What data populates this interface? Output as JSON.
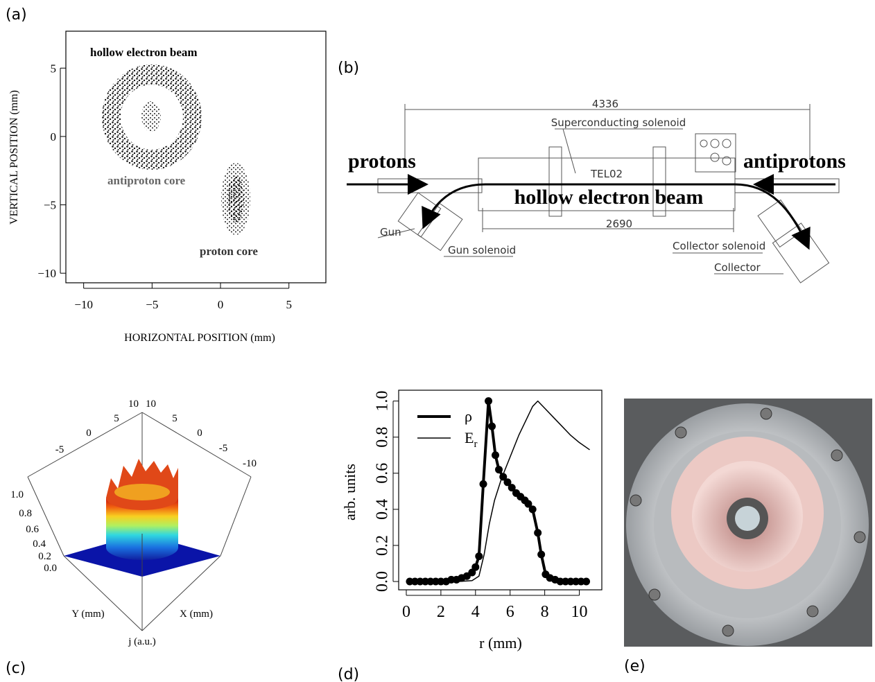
{
  "panel_labels": [
    "(a)",
    "(b)",
    "(c)",
    "(d)",
    "(e)"
  ],
  "chart_data": [
    {
      "type": "scatter",
      "xlabel": "HORIZONTAL POSITION (mm)",
      "ylabel": "VERTICAL POSITION (mm)",
      "annotations": [
        "hollow electron beam",
        "antiproton core",
        "proton core"
      ],
      "xlim": [
        -11.3,
        7.7
      ],
      "ylim": [
        -10.7,
        7.7
      ],
      "xticks": [
        {
          "value": -10,
          "label": "−10"
        },
        {
          "value": -5,
          "label": "−5"
        },
        0,
        5
      ],
      "yticks": [
        {
          "value": -10,
          "label": "−10"
        },
        {
          "value": -5,
          "label": "−5"
        },
        0,
        5
      ]
    },
    {
      "type": "line",
      "xlabel": "r (mm)",
      "ylabel": "arb. units",
      "xlim": [
        -0.44,
        11.3
      ],
      "ylim": [
        -0.046,
        1.06
      ],
      "xticks": [
        0,
        2,
        4,
        6,
        8,
        10
      ],
      "yticks": [
        {
          "value": 0,
          "label": "0.0"
        },
        0.2,
        0.4,
        0.6,
        0.8,
        {
          "value": 1,
          "label": "1.0"
        }
      ],
      "series": [
        {
          "name": "ρ",
          "color": "#000000",
          "markers": true,
          "x": [
            0.2,
            0.5,
            0.8,
            1.1,
            1.4,
            1.7,
            2.0,
            2.3,
            2.6,
            2.9,
            3.2,
            3.5,
            3.8,
            4.0,
            4.2,
            4.45,
            4.75,
            4.95,
            5.15,
            5.35,
            5.6,
            5.85,
            6.1,
            6.35,
            6.6,
            6.85,
            7.05,
            7.3,
            7.6,
            7.8,
            8.05,
            8.3,
            8.6,
            8.9,
            9.2,
            9.5,
            9.8,
            10.1,
            10.4
          ],
          "values": [
            0,
            0,
            0,
            0,
            0,
            0,
            0,
            0,
            0.01,
            0.01,
            0.02,
            0.03,
            0.05,
            0.08,
            0.14,
            0.54,
            1.0,
            0.86,
            0.7,
            0.62,
            0.58,
            0.55,
            0.52,
            0.49,
            0.47,
            0.45,
            0.43,
            0.4,
            0.27,
            0.15,
            0.04,
            0.02,
            0.01,
            0,
            0,
            0,
            0,
            0,
            0
          ]
        },
        {
          "name": "E",
          "subscript": "r",
          "color": "#000000",
          "markers": false,
          "x": [
            0.2,
            1,
            2,
            3,
            3.8,
            4.2,
            4.5,
            4.8,
            5.1,
            5.5,
            6.0,
            6.5,
            7.0,
            7.3,
            7.6,
            8.0,
            8.5,
            9.0,
            9.5,
            10.0,
            10.6
          ],
          "values": [
            0,
            0,
            0,
            0,
            0.005,
            0.03,
            0.15,
            0.32,
            0.45,
            0.57,
            0.69,
            0.81,
            0.91,
            0.97,
            1.0,
            0.96,
            0.91,
            0.86,
            0.81,
            0.77,
            0.73
          ]
        }
      ]
    }
  ],
  "diagram": {
    "total_length": "4336",
    "solenoid": "Superconducting solenoid",
    "name": "TEL02",
    "left_beam": "protons",
    "right_beam": "antiprotons",
    "beam": "hollow electron beam",
    "inner_length": "2690",
    "gun": "Gun",
    "gun_solenoid": "Gun solenoid",
    "collector_solenoid": "Collector solenoid",
    "collector": "Collector"
  },
  "surface": {
    "y_ticks": [
      "10",
      "5",
      "0",
      "-5"
    ],
    "x_ticks": [
      "10",
      "5",
      "0",
      "-5",
      "-10"
    ],
    "z_ticks": [
      "1.0",
      "0.8",
      "0.6",
      "0.4",
      "0.2",
      "0.0"
    ],
    "y_label": "Y (mm)",
    "x_label": "X (mm)",
    "z_label": "j (a.u.)"
  }
}
